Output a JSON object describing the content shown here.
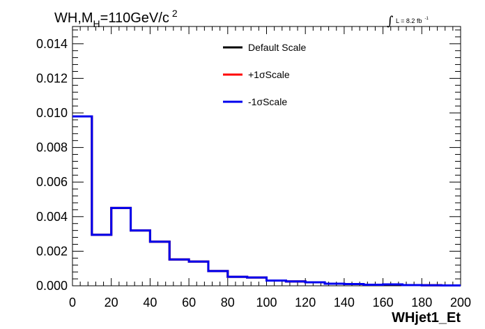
{
  "chart_data": {
    "type": "line",
    "title": "WH,M_H=110GeV/c^2",
    "title_parts": {
      "main": "WH,M",
      "sub": "H",
      "rest": "=110GeV/c",
      "sup": "2"
    },
    "luminosity": {
      "integral": "∫",
      "text": "L = 8.2 fb",
      "sup": "-1"
    },
    "xlabel": "WHjet1_Et",
    "ylabel": "",
    "xlim": [
      0,
      200
    ],
    "ylim": [
      0,
      0.015
    ],
    "x_ticks": [
      "0",
      "20",
      "40",
      "60",
      "80",
      "100",
      "120",
      "140",
      "160",
      "180",
      "200"
    ],
    "y_ticks": [
      "0.000",
      "0.002",
      "0.004",
      "0.006",
      "0.008",
      "0.010",
      "0.012",
      "0.014"
    ],
    "bin_edges": [
      0,
      10,
      20,
      30,
      40,
      50,
      60,
      70,
      80,
      90,
      100,
      110,
      120,
      130,
      140,
      150,
      160,
      170,
      180,
      190,
      200
    ],
    "legend_position": "top-center",
    "grid": false,
    "series": [
      {
        "name": "Default Scale",
        "color": "#000000",
        "values": [
          0.0098,
          0.00295,
          0.0045,
          0.0032,
          0.00255,
          0.00152,
          0.0014,
          0.00085,
          0.00052,
          0.00048,
          0.0003,
          0.00025,
          0.0002,
          0.00012,
          0.0001,
          6e-05,
          8e-05,
          4e-05,
          3e-05,
          2e-05
        ]
      },
      {
        "name": "+1σScale",
        "color": "#ff0000",
        "values": [
          0.0098,
          0.00295,
          0.0045,
          0.0032,
          0.00255,
          0.00152,
          0.0014,
          0.00085,
          0.00052,
          0.00048,
          0.0003,
          0.00025,
          0.0002,
          0.00012,
          0.0001,
          6e-05,
          8e-05,
          4e-05,
          3e-05,
          2e-05
        ]
      },
      {
        "name": "-1σScale",
        "color": "#0000ee",
        "values": [
          0.0098,
          0.00295,
          0.0045,
          0.0032,
          0.00255,
          0.00152,
          0.0014,
          0.00085,
          0.00052,
          0.00048,
          0.0003,
          0.00025,
          0.0002,
          0.00012,
          0.0001,
          6e-05,
          8e-05,
          4e-05,
          3e-05,
          2e-05
        ]
      }
    ]
  }
}
